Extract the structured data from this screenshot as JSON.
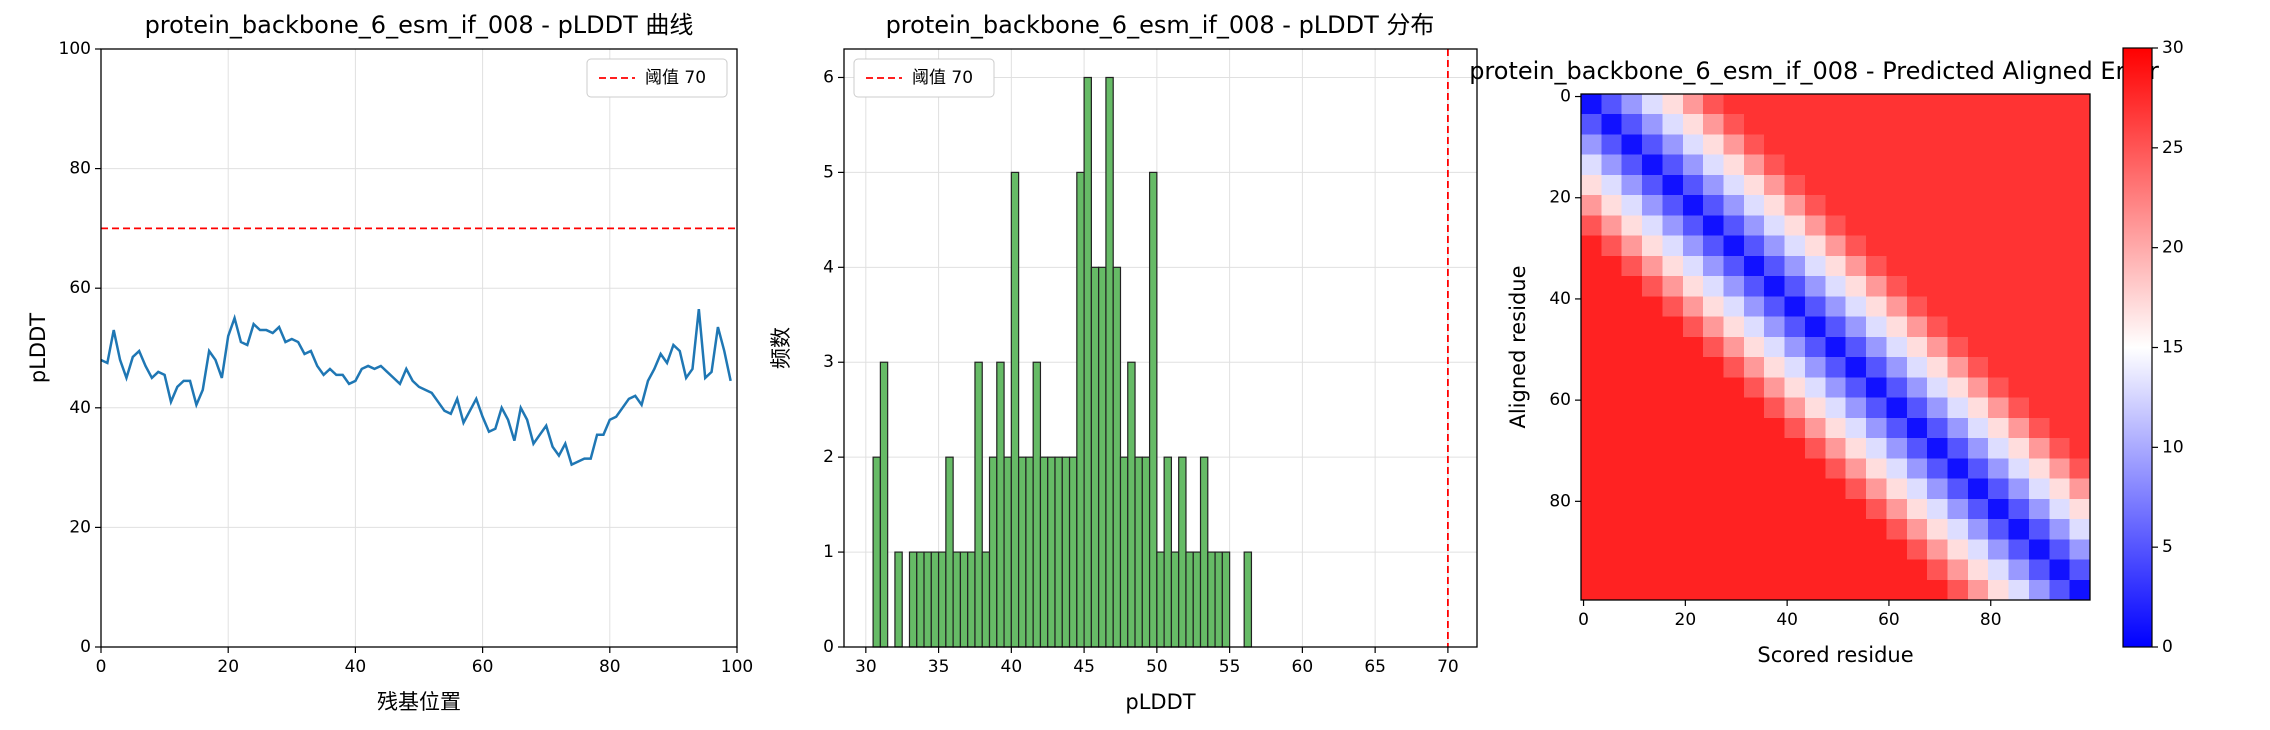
{
  "chart_data": [
    {
      "type": "line",
      "title": "protein_backbone_6_esm_if_008 - pLDDT 曲线",
      "xlabel": "残基位置",
      "ylabel": "pLDDT",
      "x": [
        0,
        1,
        2,
        3,
        4,
        5,
        6,
        7,
        8,
        9,
        10,
        11,
        12,
        13,
        14,
        15,
        16,
        17,
        18,
        19,
        20,
        21,
        22,
        23,
        24,
        25,
        26,
        27,
        28,
        29,
        30,
        31,
        32,
        33,
        34,
        35,
        36,
        37,
        38,
        39,
        40,
        41,
        42,
        43,
        44,
        45,
        46,
        47,
        48,
        49,
        50,
        51,
        52,
        53,
        54,
        55,
        56,
        57,
        58,
        59,
        60,
        61,
        62,
        63,
        64,
        65,
        66,
        67,
        68,
        69,
        70,
        71,
        72,
        73,
        74,
        75,
        76,
        77,
        78,
        79,
        80,
        81,
        82,
        83,
        84,
        85,
        86,
        87,
        88,
        89,
        90,
        91,
        92,
        93,
        94,
        95,
        96,
        97,
        98,
        99
      ],
      "values": [
        48,
        47.5,
        53,
        48,
        45,
        48.5,
        49.5,
        47,
        45,
        46,
        45.5,
        41,
        43.5,
        44.5,
        44.5,
        40.5,
        43,
        49.5,
        48,
        45,
        52,
        55,
        51,
        50.5,
        54,
        53,
        53,
        52.5,
        53.5,
        51,
        51.5,
        51,
        49,
        49.5,
        47,
        45.5,
        46.5,
        45.5,
        45.5,
        44,
        44.5,
        46.5,
        47,
        46.5,
        47,
        46,
        45,
        44,
        46.5,
        44.5,
        43.5,
        43,
        42.5,
        41,
        39.5,
        39,
        41.5,
        37.5,
        39.5,
        41.5,
        38.5,
        36,
        36.5,
        40,
        38,
        34.5,
        40,
        38,
        34,
        35.5,
        37,
        33.5,
        32,
        34,
        30.5,
        31,
        31.5,
        31.5,
        35.5,
        35.5,
        38,
        38.5,
        40,
        41.5,
        42,
        40.5,
        44.5,
        46.5,
        49,
        47.5,
        50.5,
        49.5,
        45,
        46.5,
        56.5,
        45,
        46,
        53.5,
        49.5,
        44.5
      ],
      "color": "#1f77b4",
      "xlim": [
        0,
        100
      ],
      "xticks": [
        0,
        20,
        40,
        60,
        80,
        100
      ],
      "ylim": [
        0,
        100
      ],
      "yticks": [
        0,
        20,
        40,
        60,
        80,
        100
      ],
      "grid": true,
      "threshold": {
        "value": 70,
        "name": "阈值 70",
        "color": "#ff0000"
      },
      "legend": "upper right"
    },
    {
      "type": "histogram",
      "title": "protein_backbone_6_esm_if_008 - pLDDT 分布",
      "xlabel": "pLDDT",
      "ylabel": "频数",
      "bins": [
        30.5,
        31,
        31.5,
        32,
        32.5,
        33,
        33.5,
        34,
        34.5,
        35,
        35.5,
        36,
        36.5,
        37,
        37.5,
        38,
        38.5,
        39,
        39.5,
        40,
        40.5,
        41,
        41.5,
        42,
        42.5,
        43,
        43.5,
        44,
        44.5,
        45,
        45.5,
        46,
        46.5,
        47,
        47.5,
        48,
        48.5,
        49,
        49.5,
        50,
        50.5,
        51,
        51.5,
        52,
        52.5,
        53,
        53.5,
        54,
        54.5,
        55,
        55.5,
        56,
        56.5
      ],
      "counts": [
        2,
        3,
        0,
        1,
        0,
        1,
        1,
        1,
        1,
        1,
        2,
        1,
        1,
        1,
        3,
        1,
        2,
        3,
        2,
        5,
        2,
        2,
        3,
        2,
        2,
        2,
        2,
        2,
        5,
        6,
        4,
        4,
        6,
        4,
        2,
        3,
        2,
        2,
        5,
        1,
        2,
        1,
        2,
        1,
        1,
        2,
        1,
        1,
        1,
        0,
        0,
        1
      ],
      "color": "#66bb66",
      "xlim": [
        28.5,
        72
      ],
      "xticks": [
        30,
        35,
        40,
        45,
        50,
        55,
        60,
        65,
        70
      ],
      "ylim": [
        0,
        6.3
      ],
      "yticks": [
        0,
        1,
        2,
        3,
        4,
        5,
        6
      ],
      "grid": true,
      "threshold": {
        "value": 70,
        "name": "阈值 70",
        "color": "#ff0000"
      },
      "legend": "upper left"
    },
    {
      "type": "heatmap",
      "title": "protein_backbone_6_esm_if_008 - Predicted Aligned Error",
      "xlabel": "Scored residue",
      "ylabel": "Aligned residue",
      "xbins": [
        -0.5,
        3.5,
        7.5,
        11.5,
        15.5,
        19.5,
        23.5,
        27.5,
        31.5,
        35.5,
        39.5,
        43.5,
        47.5,
        51.5,
        55.5,
        59.5,
        63.5,
        67.5,
        71.5,
        75.5,
        79.5,
        83.5,
        87.5,
        91.5,
        95.5,
        99.5
      ],
      "ybins": [
        -0.5,
        3.5,
        7.5,
        11.5,
        15.5,
        19.5,
        23.5,
        27.5,
        31.5,
        35.5,
        39.5,
        43.5,
        47.5,
        51.5,
        55.5,
        59.5,
        63.5,
        67.5,
        71.5,
        75.5,
        79.5,
        83.5,
        87.5,
        91.5,
        95.5,
        99.5
      ],
      "values": [
        [
          1,
          5,
          9,
          13,
          17,
          21,
          25,
          27,
          27,
          27,
          27,
          27,
          27,
          27,
          27,
          27,
          27,
          27,
          27,
          27,
          27,
          27,
          27,
          27,
          27
        ],
        [
          5,
          1,
          5,
          9,
          13,
          17,
          21,
          25,
          27,
          27,
          27,
          27,
          27,
          27,
          27,
          27,
          27,
          27,
          27,
          27,
          27,
          27,
          27,
          27,
          27
        ],
        [
          9,
          5,
          1,
          5,
          9,
          13,
          17,
          21,
          25,
          27,
          27,
          27,
          27,
          27,
          27,
          27,
          27,
          27,
          27,
          27,
          27,
          27,
          27,
          27,
          27
        ],
        [
          13,
          9,
          5,
          1,
          5,
          9,
          13,
          17,
          21,
          25,
          27,
          27,
          27,
          27,
          27,
          27,
          27,
          27,
          27,
          27,
          27,
          27,
          27,
          27,
          27
        ],
        [
          17,
          13,
          9,
          5,
          1,
          5,
          9,
          13,
          17,
          21,
          25,
          27,
          27,
          27,
          27,
          27,
          27,
          27,
          27,
          27,
          27,
          27,
          27,
          27,
          27
        ],
        [
          21,
          17,
          13,
          9,
          5,
          1,
          5,
          9,
          13,
          17,
          21,
          25,
          27,
          27,
          27,
          27,
          27,
          27,
          27,
          27,
          27,
          27,
          27,
          27,
          27
        ],
        [
          25,
          21,
          17,
          13,
          9,
          5,
          1,
          5,
          9,
          13,
          17,
          21,
          25,
          27,
          27,
          27,
          27,
          27,
          27,
          27,
          27,
          27,
          27,
          27,
          27
        ],
        [
          28,
          25,
          21,
          17,
          13,
          9,
          5,
          1,
          5,
          9,
          13,
          17,
          21,
          25,
          27,
          27,
          27,
          27,
          27,
          27,
          27,
          27,
          27,
          27,
          27
        ],
        [
          28,
          28,
          25,
          21,
          17,
          13,
          9,
          5,
          1,
          5,
          9,
          13,
          17,
          21,
          25,
          27,
          27,
          27,
          27,
          27,
          27,
          27,
          27,
          27,
          27
        ],
        [
          28,
          28,
          28,
          25,
          21,
          17,
          13,
          9,
          5,
          1,
          5,
          9,
          13,
          17,
          21,
          25,
          27,
          27,
          27,
          27,
          27,
          27,
          27,
          27,
          27
        ],
        [
          28,
          28,
          28,
          28,
          25,
          21,
          17,
          13,
          9,
          5,
          1,
          5,
          9,
          13,
          17,
          21,
          25,
          27,
          27,
          27,
          27,
          27,
          27,
          27,
          27
        ],
        [
          28,
          28,
          28,
          28,
          28,
          25,
          21,
          17,
          13,
          9,
          5,
          1,
          5,
          9,
          13,
          17,
          21,
          25,
          27,
          27,
          27,
          27,
          27,
          27,
          27
        ],
        [
          28,
          28,
          28,
          28,
          28,
          28,
          25,
          21,
          17,
          13,
          9,
          5,
          1,
          5,
          9,
          13,
          17,
          21,
          25,
          27,
          27,
          27,
          27,
          27,
          27
        ],
        [
          28,
          28,
          28,
          28,
          28,
          28,
          28,
          25,
          21,
          17,
          13,
          9,
          5,
          1,
          5,
          9,
          13,
          17,
          21,
          25,
          27,
          27,
          27,
          27,
          27
        ],
        [
          28,
          28,
          28,
          28,
          28,
          28,
          28,
          28,
          25,
          21,
          17,
          13,
          9,
          5,
          1,
          5,
          9,
          13,
          17,
          21,
          25,
          27,
          27,
          27,
          27
        ],
        [
          28,
          28,
          28,
          28,
          28,
          28,
          28,
          28,
          28,
          25,
          21,
          17,
          13,
          9,
          5,
          1,
          5,
          9,
          13,
          17,
          21,
          25,
          27,
          27,
          27
        ],
        [
          28,
          28,
          28,
          28,
          28,
          28,
          28,
          28,
          28,
          28,
          25,
          21,
          17,
          13,
          9,
          5,
          1,
          5,
          9,
          13,
          17,
          21,
          25,
          27,
          27
        ],
        [
          28,
          28,
          28,
          28,
          28,
          28,
          28,
          28,
          28,
          28,
          28,
          25,
          21,
          17,
          13,
          9,
          5,
          1,
          5,
          9,
          13,
          17,
          21,
          25,
          27
        ],
        [
          28,
          28,
          28,
          28,
          28,
          28,
          28,
          28,
          28,
          28,
          28,
          28,
          25,
          21,
          17,
          13,
          9,
          5,
          1,
          5,
          9,
          13,
          17,
          21,
          25
        ],
        [
          28,
          28,
          28,
          28,
          28,
          28,
          28,
          28,
          28,
          28,
          28,
          28,
          28,
          25,
          21,
          17,
          13,
          9,
          5,
          1,
          5,
          9,
          13,
          17,
          21
        ],
        [
          28,
          28,
          28,
          28,
          28,
          28,
          28,
          28,
          28,
          28,
          28,
          28,
          28,
          28,
          25,
          21,
          17,
          13,
          9,
          5,
          1,
          5,
          9,
          13,
          17
        ],
        [
          28,
          28,
          28,
          28,
          28,
          28,
          28,
          28,
          28,
          28,
          28,
          28,
          28,
          28,
          28,
          25,
          21,
          17,
          13,
          9,
          5,
          1,
          5,
          9,
          13
        ],
        [
          28,
          28,
          28,
          28,
          28,
          28,
          28,
          28,
          28,
          28,
          28,
          28,
          28,
          28,
          28,
          28,
          25,
          21,
          17,
          13,
          9,
          5,
          1,
          5,
          9
        ],
        [
          28,
          28,
          28,
          28,
          28,
          28,
          28,
          28,
          28,
          28,
          28,
          28,
          28,
          28,
          28,
          28,
          28,
          25,
          21,
          17,
          13,
          9,
          5,
          1,
          5
        ],
        [
          28,
          28,
          28,
          28,
          28,
          28,
          28,
          28,
          28,
          28,
          28,
          28,
          28,
          28,
          28,
          28,
          28,
          28,
          25,
          21,
          17,
          13,
          9,
          5,
          1
        ]
      ],
      "colormap": "bwr",
      "clim": [
        0,
        30
      ],
      "cticks": [
        0,
        5,
        10,
        15,
        20,
        25,
        30
      ],
      "xlim": [
        -0.5,
        99.5
      ],
      "xticks": [
        0,
        20,
        40,
        60,
        80
      ],
      "ylim": [
        99.5,
        -0.5
      ],
      "yticks": [
        0,
        20,
        40,
        60,
        80
      ],
      "grid": false
    }
  ]
}
